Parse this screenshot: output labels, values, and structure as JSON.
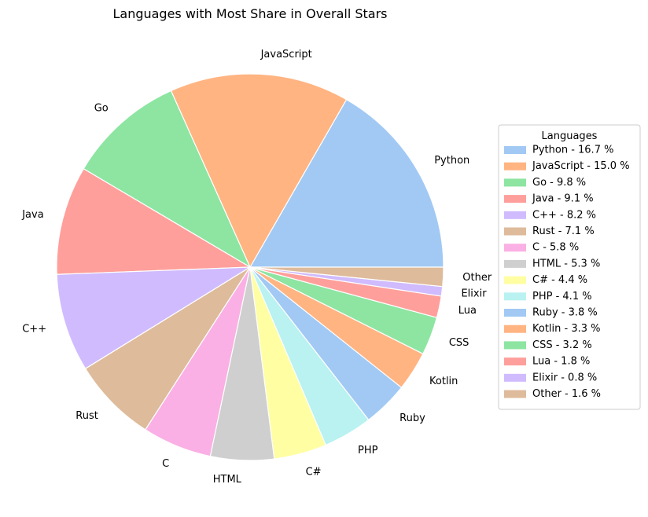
{
  "chart_data": {
    "type": "pie",
    "title": "Languages with Most Share in Overall Stars",
    "legend": {
      "title": "Languages",
      "placement": "center-right"
    },
    "start_angle_deg": 0,
    "direction": "counterclockwise",
    "edge_color": "#ffffff",
    "slices": [
      {
        "label": "Python",
        "value": 16.7,
        "legend": "Python - 16.7 %",
        "color": "#a1c9f4"
      },
      {
        "label": "JavaScript",
        "value": 15.0,
        "legend": "JavaScript - 15.0 %",
        "color": "#ffb482"
      },
      {
        "label": "Go",
        "value": 9.8,
        "legend": "Go - 9.8 %",
        "color": "#8de5a1"
      },
      {
        "label": "Java",
        "value": 9.1,
        "legend": "Java - 9.1 %",
        "color": "#ff9f9b"
      },
      {
        "label": "C++",
        "value": 8.2,
        "legend": "C++ - 8.2 %",
        "color": "#d0bbff"
      },
      {
        "label": "Rust",
        "value": 7.1,
        "legend": "Rust - 7.1 %",
        "color": "#debb9b"
      },
      {
        "label": "C",
        "value": 5.8,
        "legend": "C - 5.8 %",
        "color": "#fab0e4"
      },
      {
        "label": "HTML",
        "value": 5.3,
        "legend": "HTML - 5.3 %",
        "color": "#cfcfcf"
      },
      {
        "label": "C#",
        "value": 4.4,
        "legend": "C# - 4.4 %",
        "color": "#fffea3"
      },
      {
        "label": "PHP",
        "value": 4.1,
        "legend": "PHP - 4.1 %",
        "color": "#b9f2f0"
      },
      {
        "label": "Ruby",
        "value": 3.8,
        "legend": "Ruby - 3.8 %",
        "color": "#a1c9f4"
      },
      {
        "label": "Kotlin",
        "value": 3.3,
        "legend": "Kotlin - 3.3 %",
        "color": "#ffb482"
      },
      {
        "label": "CSS",
        "value": 3.2,
        "legend": "CSS - 3.2 %",
        "color": "#8de5a1"
      },
      {
        "label": "Lua",
        "value": 1.8,
        "legend": "Lua - 1.8 %",
        "color": "#ff9f9b"
      },
      {
        "label": "Elixir",
        "value": 0.8,
        "legend": "Elixir - 0.8 %",
        "color": "#d0bbff"
      },
      {
        "label": "Other",
        "value": 1.6,
        "legend": "Other - 1.6 %",
        "color": "#debb9b"
      }
    ]
  }
}
